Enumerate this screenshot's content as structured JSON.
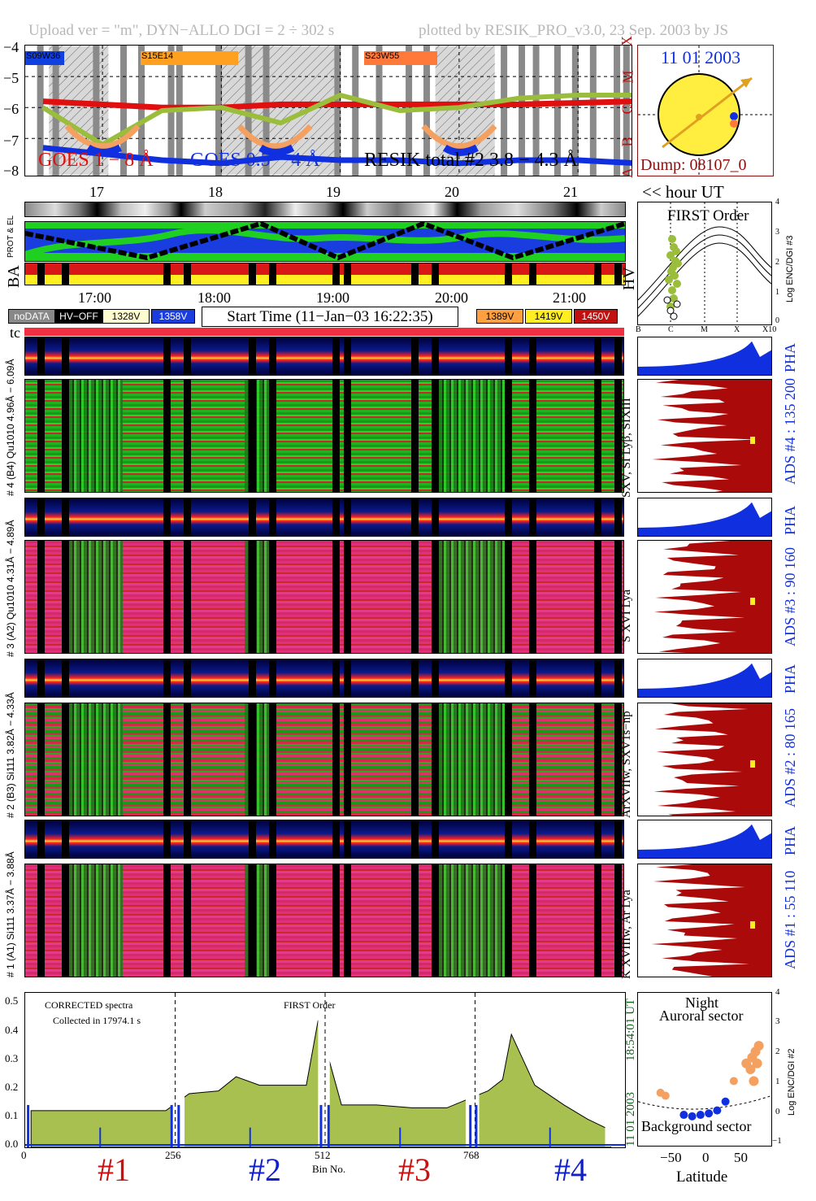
{
  "header": {
    "left": "Upload ver = \"m\", DYN−ALLO DGI =   2 ÷ 302 s",
    "right": "plotted by RESIK_PRO_v3.0, 23 Sep. 2003 by JS"
  },
  "goes_panel": {
    "y_ticks": [
      "−4",
      "−5",
      "−6",
      "−7",
      "−8"
    ],
    "class_labels": [
      "X",
      "M",
      "C",
      "B",
      "A"
    ],
    "region_labels": [
      "S09W36",
      "S15E14",
      "S23W55"
    ],
    "legend_goes_long": "GOES 1 − 8 Å",
    "legend_goes_short": "GOES 0.5 − 4 Å",
    "legend_resik": "RESIK total #2 3.8 − 4.3 Å",
    "colors": {
      "goes_long": "#e01010",
      "goes_short": "#1030e0",
      "resik": "#9bbd3c",
      "resik_alt": "#f4a060"
    }
  },
  "sun_panel": {
    "date": "11 01 2003",
    "dump": "Dump: 08107_0"
  },
  "time_axis": {
    "hours_top": [
      "17",
      "18",
      "19",
      "20",
      "21"
    ],
    "hour_unit": "<< hour UT",
    "hours_mid": [
      "17:00",
      "18:00",
      "19:00",
      "20:00",
      "21:00"
    ]
  },
  "status_panel": {
    "prot_label": "PROT & EL",
    "ba_label": "BA",
    "hv_label": "HV"
  },
  "first_order_panel": {
    "title": "FIRST Order",
    "y_ticks": [
      "4",
      "3",
      "2",
      "1",
      "0"
    ],
    "y_label": "Log ENC/DGI #3",
    "x_ticks": [
      "B",
      "C",
      "M",
      "X",
      "X10"
    ]
  },
  "legend": {
    "nodata": "noDATA",
    "hvoff": "HV−OFF",
    "v1328": "1328V",
    "v1358": "1358V",
    "start_time": "Start Time (11−Jan−03 16:22:35)",
    "v1389": "1389V",
    "v1419": "1419V",
    "v1450": "1450V"
  },
  "tc_label": "tc",
  "channels": [
    {
      "pha_range": "4.96Å − 6.09Å",
      "range": "# 4 (B4) Qu1010 4.96Å − 6.09Å",
      "short": "# 4 (B4) Qu1010 4.96Å − 6.09Å",
      "lines": "SXV, SI Lyβ, SIXIII",
      "ads": "ADS #4 :  135 200",
      "pha": "PHA"
    },
    {
      "range": "# 3 (A2) Qu1010 4.31Å − 4.89Å",
      "lines": "S XVI Lya",
      "ads": "ADS #3 :  90 160",
      "pha": "PHA"
    },
    {
      "range": "# 2 (B3) Si111 3.82Å − 4.33Å",
      "lines": "ArXVIIw, SXV1s−np",
      "ads": "ADS #2 :  80 165",
      "pha": "PHA"
    },
    {
      "range": "# 1 (A1) Si111 3.37Å − 3.88Å",
      "lines": "K XVIIIw, Ar Lya",
      "ads": "ADS #1 :  55 110",
      "pha": "PHA"
    }
  ],
  "spectrum": {
    "note1": "CORRECTED spectra",
    "note2": "Collected in 17974.1 s",
    "order": "FIRST Order",
    "y_ticks": [
      "0.5",
      "0.4",
      "0.3",
      "0.2",
      "0.1",
      "0.0"
    ],
    "x_ticks": [
      "0",
      "256",
      "512",
      "768"
    ],
    "x_label": "Bin No.",
    "stamp_date": "11 01 2003",
    "stamp_time": "18:54:01 UT",
    "channel_labels": [
      "#1",
      "#2",
      "#3",
      "#4"
    ],
    "channel_colors": [
      "#cc1010",
      "#1020cc",
      "#cc1010",
      "#1020cc"
    ]
  },
  "latitude_panel": {
    "title1": "Night",
    "title2": "Auroral sector",
    "bottom": "Background sector",
    "x_label": "Latitude",
    "x_ticks": [
      "−50",
      "0",
      "50"
    ],
    "y_ticks": [
      "4",
      "3",
      "2",
      "1",
      "0",
      "−1"
    ],
    "y_label": "Log ENC/DGI #2"
  },
  "chart_data": [
    {
      "type": "line",
      "title": "",
      "xlabel": "hour UT",
      "ylabel": "",
      "ylim": [
        -8.2,
        -4
      ],
      "x": [
        16.5,
        17.0,
        17.5,
        18.0,
        18.5,
        19.0,
        19.5,
        20.0,
        20.5,
        21.0,
        21.5
      ],
      "series": [
        {
          "name": "GOES 1 − 8 Å",
          "values": [
            -5.8,
            -5.9,
            -6.0,
            -6.0,
            -5.9,
            -5.9,
            -5.9,
            -5.9,
            -5.9,
            -5.85,
            -5.8
          ]
        },
        {
          "name": "GOES 0.5 − 4 Å",
          "values": [
            -7.3,
            -7.5,
            -7.7,
            -7.8,
            -7.6,
            -7.7,
            -7.7,
            -7.8,
            -7.7,
            -7.7,
            -7.8
          ]
        },
        {
          "name": "RESIK total #2 3.8 − 4.3 Å",
          "values": [
            -6.0,
            -7.2,
            -6.1,
            -6.0,
            -6.5,
            -5.6,
            -6.1,
            -6.0,
            -5.7,
            -5.6,
            -5.6
          ]
        }
      ]
    },
    {
      "type": "area",
      "title": "",
      "xlabel": "Bin No.",
      "ylabel": "",
      "ylim": [
        0,
        0.53
      ],
      "x": [
        10,
        60,
        120,
        180,
        240,
        280,
        330,
        360,
        400,
        450,
        480,
        500,
        540,
        600,
        660,
        720,
        790,
        815,
        830,
        870,
        920,
        960,
        1000
      ],
      "series": [
        {
          "name": "",
          "values": [
            0.13,
            0.13,
            0.13,
            0.13,
            0.13,
            0.19,
            0.2,
            0.25,
            0.22,
            0.22,
            0.22,
            0.45,
            0.15,
            0.15,
            0.14,
            0.14,
            0.2,
            0.24,
            0.4,
            0.22,
            0.15,
            0.1,
            0.06
          ]
        }
      ]
    },
    {
      "type": "scatter",
      "title": "",
      "xlabel": "Latitude",
      "ylabel": "Log ENC/DGI #2",
      "ylim": [
        -1,
        4
      ],
      "series": [
        {
          "name": "",
          "x": [
            -48,
            -42,
            -20,
            -10,
            0,
            10,
            20,
            30,
            40
          ],
          "y": [
            0.8,
            0.7,
            0.05,
            0.0,
            0.05,
            0.1,
            0.2,
            0.5,
            1.2
          ]
        },
        {
          "name": "",
          "x": [
            55,
            60,
            62,
            64,
            66,
            68,
            70
          ],
          "y": [
            1.8,
            1.6,
            2.0,
            1.2,
            2.2,
            1.8,
            2.4
          ]
        }
      ]
    }
  ]
}
